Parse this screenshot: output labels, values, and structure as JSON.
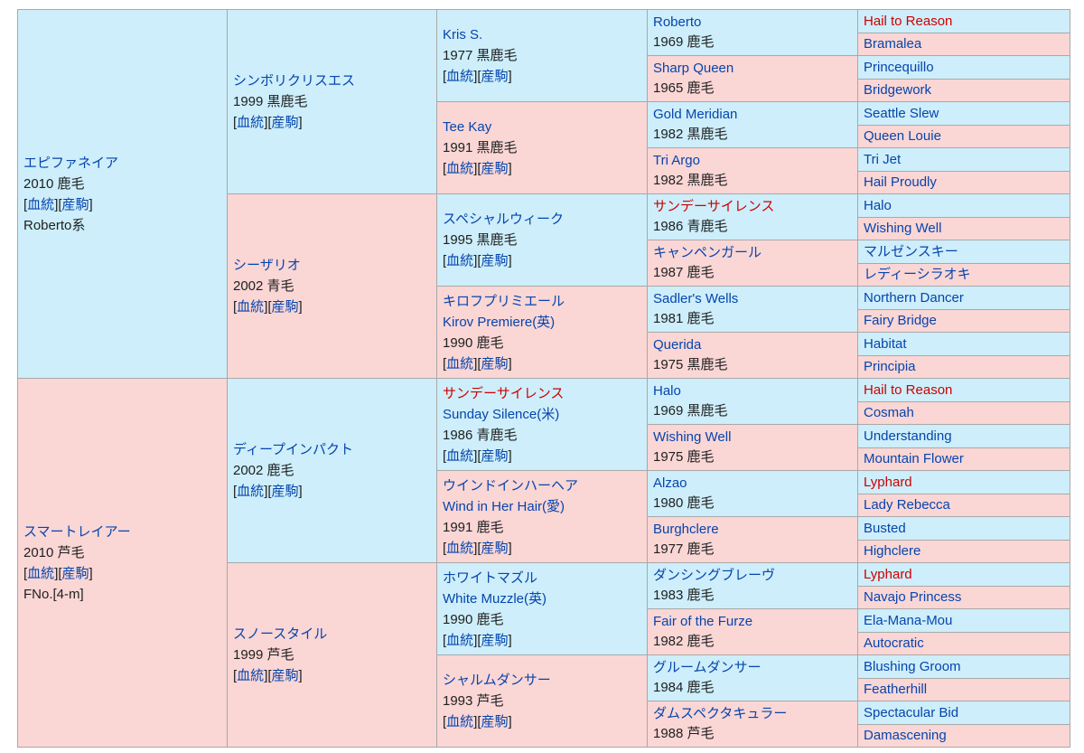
{
  "pedigree": {
    "sire": {
      "name": "エピファネイア",
      "info": "2010 鹿毛",
      "line_label": "Roberto系",
      "bloodline_link": "血統",
      "progeny_link": "産駒",
      "sire": {
        "name": "シンボリクリスエス",
        "info": "1999 黒鹿毛",
        "bloodline_link": "血統",
        "progeny_link": "産駒",
        "sire": {
          "name": "Kris S.",
          "info": "1977 黒鹿毛",
          "bloodline_link": "血統",
          "progeny_link": "産駒",
          "sire": {
            "name": "Roberto",
            "info": "1969 鹿毛",
            "sire": "Hail to Reason",
            "dam": "Bramalea"
          },
          "dam": {
            "name": "Sharp Queen",
            "info": "1965 鹿毛",
            "sire": "Princequillo",
            "dam": "Bridgework"
          }
        },
        "dam": {
          "name": "Tee Kay",
          "info": "1991 黒鹿毛",
          "bloodline_link": "血統",
          "progeny_link": "産駒",
          "sire": {
            "name": "Gold Meridian",
            "info": "1982 黒鹿毛",
            "sire": "Seattle Slew",
            "dam": "Queen Louie"
          },
          "dam": {
            "name": "Tri Argo",
            "info": "1982 黒鹿毛",
            "sire": "Tri Jet",
            "dam": "Hail Proudly"
          }
        }
      },
      "dam": {
        "name": "シーザリオ",
        "info": "2002 青毛",
        "bloodline_link": "血統",
        "progeny_link": "産駒",
        "sire": {
          "name": "スペシャルウィーク",
          "info": "1995 黒鹿毛",
          "bloodline_link": "血統",
          "progeny_link": "産駒",
          "sire": {
            "name": "サンデーサイレンス",
            "info": "1986 青鹿毛",
            "sire": "Halo",
            "dam": "Wishing Well"
          },
          "dam": {
            "name": "キャンペンガール",
            "info": "1987 鹿毛",
            "sire": "マルゼンスキー",
            "dam": "レディーシラオキ"
          }
        },
        "dam": {
          "name": "キロフプリミエール",
          "name_en": "Kirov Premiere(英)",
          "info": "1990 鹿毛",
          "bloodline_link": "血統",
          "progeny_link": "産駒",
          "sire": {
            "name": "Sadler's Wells",
            "info": "1981 鹿毛",
            "sire": "Northern Dancer",
            "dam": "Fairy Bridge"
          },
          "dam": {
            "name": "Querida",
            "info": "1975 黒鹿毛",
            "sire": "Habitat",
            "dam": "Principia"
          }
        }
      }
    },
    "dam": {
      "name": "スマートレイアー",
      "info": "2010 芦毛",
      "family_label": "FNo.[4-m]",
      "bloodline_link": "血統",
      "progeny_link": "産駒",
      "sire": {
        "name": "ディープインパクト",
        "info": "2002 鹿毛",
        "bloodline_link": "血統",
        "progeny_link": "産駒",
        "sire": {
          "name": "サンデーサイレンス",
          "name_en": "Sunday Silence(米)",
          "info": "1986 青鹿毛",
          "bloodline_link": "血統",
          "progeny_link": "産駒",
          "sire": {
            "name": "Halo",
            "info": "1969 黒鹿毛",
            "sire": "Hail to Reason",
            "dam": "Cosmah"
          },
          "dam": {
            "name": "Wishing Well",
            "info": "1975 鹿毛",
            "sire": "Understanding",
            "dam": "Mountain Flower"
          }
        },
        "dam": {
          "name": "ウインドインハーヘア",
          "name_en": "Wind in Her Hair(愛)",
          "info": "1991 鹿毛",
          "bloodline_link": "血統",
          "progeny_link": "産駒",
          "sire": {
            "name": "Alzao",
            "info": "1980 鹿毛",
            "sire": "Lyphard",
            "dam": "Lady Rebecca"
          },
          "dam": {
            "name": "Burghclere",
            "info": "1977 鹿毛",
            "sire": "Busted",
            "dam": "Highclere"
          }
        }
      },
      "dam": {
        "name": "スノースタイル",
        "info": "1999 芦毛",
        "bloodline_link": "血統",
        "progeny_link": "産駒",
        "sire": {
          "name": "ホワイトマズル",
          "name_en": "White Muzzle(英)",
          "info": "1990 鹿毛",
          "bloodline_link": "血統",
          "progeny_link": "産駒",
          "sire": {
            "name": "ダンシングブレーヴ",
            "info": "1983 鹿毛",
            "sire": "Lyphard",
            "dam": "Navajo Princess"
          },
          "dam": {
            "name": "Fair of the Furze",
            "info": "1982 鹿毛",
            "sire": "Ela-Mana-Mou",
            "dam": "Autocratic"
          }
        },
        "dam": {
          "name": "シャルムダンサー",
          "info": "1993 芦毛",
          "bloodline_link": "血統",
          "progeny_link": "産駒",
          "sire": {
            "name": "グルームダンサー",
            "info": "1984 鹿毛",
            "sire": "Blushing Groom",
            "dam": "Featherhill"
          },
          "dam": {
            "name": "ダムスペクタキュラー",
            "info": "1988 芦毛",
            "sire": "Spectacular Bid",
            "dam": "Damascening"
          }
        }
      }
    }
  },
  "colors": {
    "male_bg": "#cdeefa",
    "female_bg": "#fad6d5",
    "link": "#0645ad",
    "highlight_link": "#d00000",
    "border": "#a9a9a9"
  },
  "highlighted_names": [
    "Hail to Reason",
    "サンデーサイレンス",
    "Lyphard"
  ]
}
